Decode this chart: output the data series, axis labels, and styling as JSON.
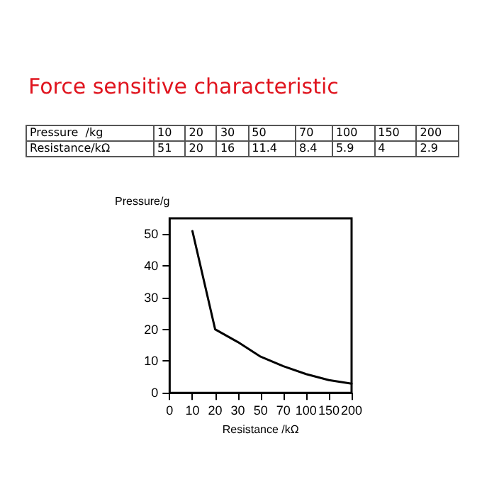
{
  "chart_data": [
    {
      "type": "other",
      "title": "Force sensitive characteristic",
      "y_categories": [
        "Pressure  /kg",
        "Resistance/kΩ"
      ],
      "cell_labels": [
        [
          "10",
          "20",
          "30",
          "50",
          "70",
          "100",
          "150",
          "200"
        ],
        [
          "51",
          "20",
          "16",
          "11.4",
          "8.4",
          "5.9",
          "4",
          "2.9"
        ]
      ]
    },
    {
      "type": "line",
      "xlabel": "Resistance /kΩ",
      "ylabel": "Pressure/g",
      "categories": [
        "0",
        "10",
        "20",
        "30",
        "50",
        "70",
        "100",
        "150",
        "200"
      ],
      "values": [
        null,
        51,
        20,
        16,
        11.4,
        8.4,
        5.9,
        4,
        2.9
      ],
      "color": "#000000",
      "ylim": [
        0,
        55
      ],
      "yticks": [
        0,
        10,
        20,
        30,
        40,
        50
      ],
      "grid": false,
      "marker": "none",
      "line_style": "solid"
    }
  ]
}
